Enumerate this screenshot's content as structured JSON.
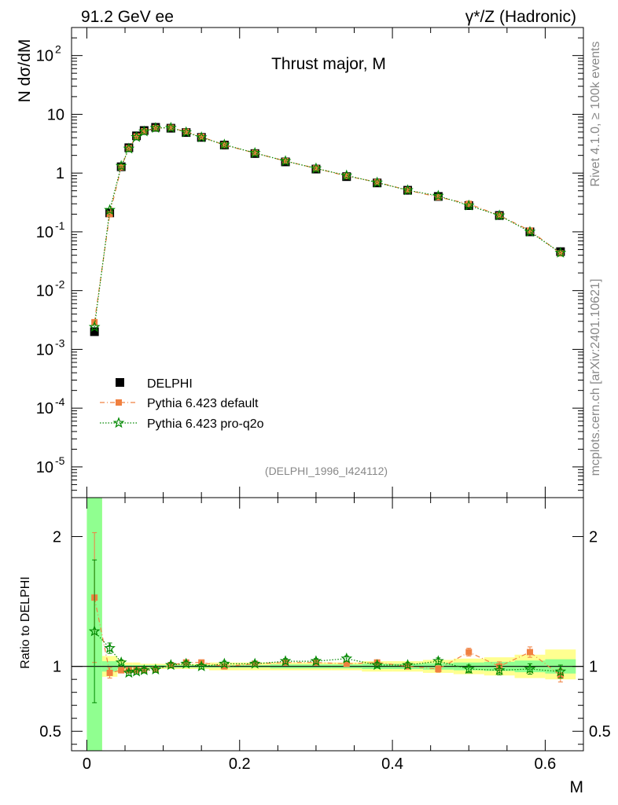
{
  "header": {
    "left": "91.2 GeV ee",
    "right": "γ*/Z (Hadronic)"
  },
  "side_labels": {
    "rivet": "Rivet 4.1.0, ≥ 100k events",
    "mcplots": "mcplots.cern.ch [arXiv:2401.10621]"
  },
  "chart_data": {
    "type": "scatter",
    "title": "Thrust major, M",
    "analysis_tag": "(DELPHI_1996_I424112)",
    "xlabel": "M",
    "ylabel": "N  dσ/dM",
    "ratio_ylabel": "Ratio to DELPHI",
    "xlim": [
      -0.02,
      0.65
    ],
    "ylim": [
      3e-06,
      300
    ],
    "yscale": "log",
    "ratio_ylim": [
      0.35,
      2.3
    ],
    "x_ticks": [
      "0",
      "0.2",
      "0.4",
      "0.6"
    ],
    "y_ticks": [
      "10^-5",
      "10^-4",
      "10^-3",
      "10^-2",
      "10^-1",
      "1",
      "10",
      "10^2"
    ],
    "ratio_ticks": [
      "0.5",
      "1",
      "2"
    ],
    "legend": [
      "DELPHI",
      "Pythia 6.423 default",
      "Pythia 6.423 pro-q2o"
    ],
    "x": [
      0.01,
      0.03,
      0.045,
      0.055,
      0.065,
      0.075,
      0.09,
      0.11,
      0.13,
      0.15,
      0.18,
      0.22,
      0.26,
      0.3,
      0.34,
      0.38,
      0.42,
      0.46,
      0.5,
      0.54,
      0.58,
      0.62
    ],
    "x_halfwidth": [
      0.01,
      0.01,
      0.005,
      0.005,
      0.005,
      0.005,
      0.01,
      0.01,
      0.01,
      0.01,
      0.02,
      0.02,
      0.02,
      0.02,
      0.02,
      0.02,
      0.02,
      0.02,
      0.02,
      0.02,
      0.02,
      0.02
    ],
    "series": [
      {
        "name": "DELPHI",
        "color": "#000000",
        "values": [
          0.002,
          0.21,
          1.28,
          2.7,
          4.3,
          5.3,
          6.0,
          5.8,
          4.9,
          4.05,
          3.0,
          2.15,
          1.55,
          1.17,
          0.87,
          0.68,
          0.51,
          0.4,
          0.28,
          0.19,
          0.1,
          0.046
        ],
        "ratio_band_yellow": [
          [
            0.1,
            5.0
          ],
          [
            0.92,
            1.08
          ],
          [
            0.95,
            1.05
          ],
          [
            0.97,
            1.03
          ],
          [
            0.97,
            1.03
          ],
          [
            0.98,
            1.02
          ],
          [
            0.98,
            1.02
          ],
          [
            0.98,
            1.02
          ],
          [
            0.98,
            1.02
          ],
          [
            0.98,
            1.02
          ],
          [
            0.97,
            1.03
          ],
          [
            0.97,
            1.03
          ],
          [
            0.97,
            1.03
          ],
          [
            0.97,
            1.03
          ],
          [
            0.97,
            1.03
          ],
          [
            0.96,
            1.04
          ],
          [
            0.96,
            1.04
          ],
          [
            0.95,
            1.05
          ],
          [
            0.94,
            1.06
          ],
          [
            0.93,
            1.07
          ],
          [
            0.91,
            1.09
          ],
          [
            0.9,
            1.13
          ]
        ],
        "ratio_band_green": [
          [
            0.1,
            5.0
          ],
          [
            0.96,
            1.04
          ],
          [
            0.98,
            1.02
          ],
          [
            0.99,
            1.01
          ],
          [
            0.99,
            1.01
          ],
          [
            0.99,
            1.01
          ],
          [
            0.99,
            1.01
          ],
          [
            0.99,
            1.01
          ],
          [
            0.99,
            1.01
          ],
          [
            0.99,
            1.01
          ],
          [
            0.99,
            1.01
          ],
          [
            0.99,
            1.01
          ],
          [
            0.985,
            1.015
          ],
          [
            0.985,
            1.015
          ],
          [
            0.985,
            1.015
          ],
          [
            0.98,
            1.02
          ],
          [
            0.98,
            1.02
          ],
          [
            0.975,
            1.025
          ],
          [
            0.97,
            1.03
          ],
          [
            0.965,
            1.035
          ],
          [
            0.955,
            1.045
          ],
          [
            0.945,
            1.055
          ]
        ]
      },
      {
        "name": "Pythia 6.423 default",
        "color": "#f08040",
        "values": [
          0.0029,
          0.2,
          1.26,
          2.65,
          4.2,
          5.15,
          5.85,
          5.9,
          5.05,
          4.15,
          3.0,
          2.2,
          1.6,
          1.2,
          0.89,
          0.7,
          0.51,
          0.39,
          0.3,
          0.19,
          0.105,
          0.043
        ],
        "ratio": [
          1.53,
          0.95,
          0.97,
          0.97,
          0.97,
          0.97,
          0.975,
          1.01,
          1.03,
          1.03,
          1.0,
          1.02,
          1.03,
          1.03,
          1.02,
          1.03,
          1.0,
          0.98,
          1.11,
          1.0,
          1.11,
          0.93
        ],
        "ratio_err": [
          0.5,
          0.04,
          0.02,
          0.02,
          0.02,
          0.02,
          0.02,
          0.02,
          0.02,
          0.02,
          0.02,
          0.02,
          0.02,
          0.02,
          0.02,
          0.02,
          0.02,
          0.025,
          0.03,
          0.035,
          0.04,
          0.05
        ]
      },
      {
        "name": "Pythia 6.423 pro-q2o",
        "color": "#008800",
        "values": [
          0.0024,
          0.235,
          1.32,
          2.6,
          4.1,
          5.1,
          5.85,
          5.9,
          4.95,
          4.05,
          3.05,
          2.2,
          1.6,
          1.2,
          0.91,
          0.69,
          0.51,
          0.41,
          0.28,
          0.19,
          0.1,
          0.044
        ],
        "ratio": [
          1.27,
          1.14,
          1.03,
          0.95,
          0.96,
          0.97,
          0.975,
          1.01,
          1.02,
          1.0,
          1.02,
          1.02,
          1.04,
          1.04,
          1.06,
          1.01,
          1.01,
          1.04,
          0.98,
          0.97,
          0.98,
          0.96
        ],
        "ratio_err": [
          0.55,
          0.04,
          0.02,
          0.02,
          0.02,
          0.02,
          0.02,
          0.02,
          0.02,
          0.02,
          0.02,
          0.02,
          0.02,
          0.02,
          0.02,
          0.02,
          0.02,
          0.025,
          0.03,
          0.035,
          0.04,
          0.05
        ]
      }
    ]
  }
}
